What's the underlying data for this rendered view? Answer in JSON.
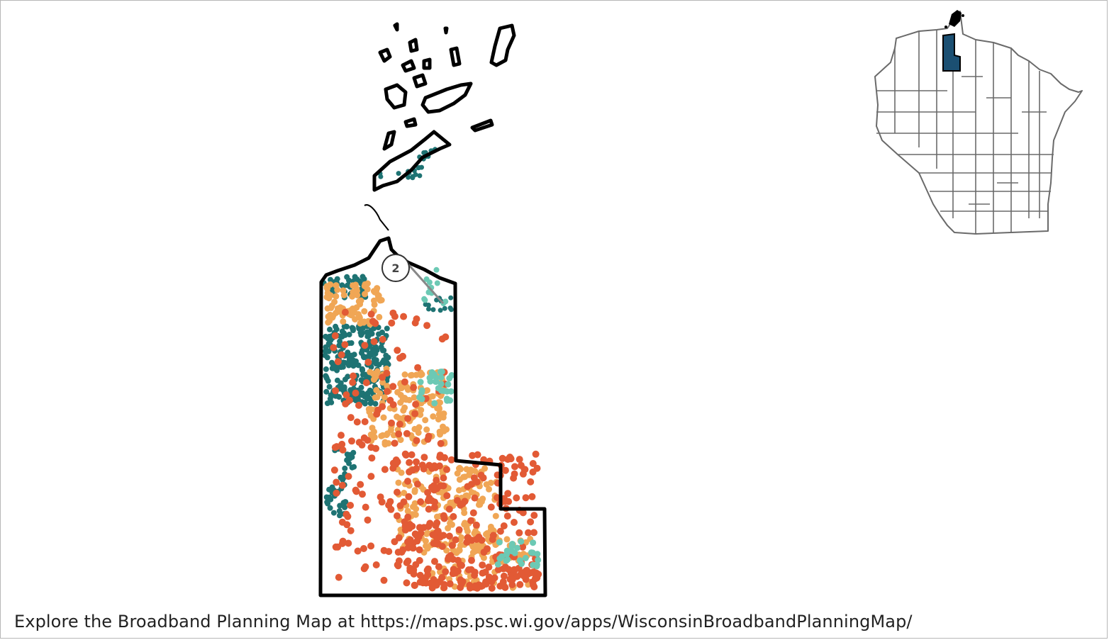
{
  "footer": {
    "text": "Explore the Broadband Planning Map at https://maps.psc.wi.gov/apps/WisconsinBroadbandPlanningMap/"
  },
  "map": {
    "county_highlight_color": "#1b4f72",
    "outline_color": "#000000",
    "locator_outline_color": "#666666",
    "category_colors": {
      "teal_dark": "#1e7373",
      "teal_light": "#6cc9b4",
      "orange": "#f0a655",
      "red_orange": "#e25a35"
    },
    "marker": {
      "label": "2"
    }
  }
}
